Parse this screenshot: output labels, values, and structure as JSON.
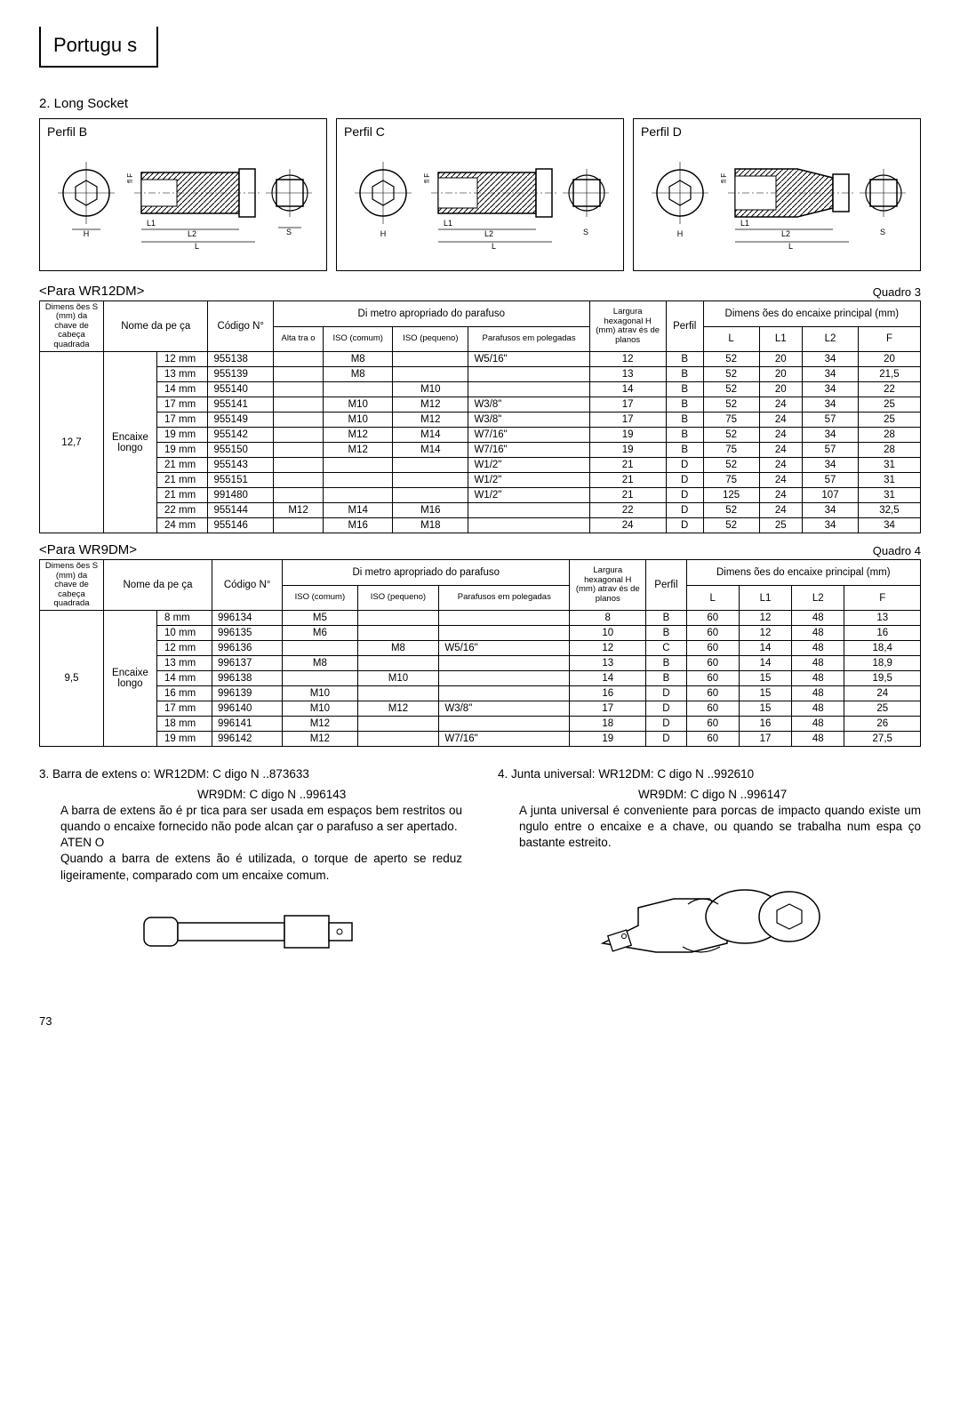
{
  "language_tab": "Portugu s",
  "section_2_title": "2.  Long Socket",
  "profiles": {
    "b": {
      "label": "Perfil  B"
    },
    "c": {
      "label": "Perfil  C"
    },
    "d": {
      "label": "Perfil  D"
    }
  },
  "diagram_labels": {
    "H": "H",
    "L1": "L1",
    "L2": "L2",
    "L": "L",
    "S": "S",
    "F": "F",
    "flange": "fl   "
  },
  "table3": {
    "caption": "<Para WR12DM>",
    "quadro": "Quadro 3",
    "head": {
      "dim_s": "Dimens ões S (mm) da chave de  cabeça quadrada",
      "nome": "Nome  da  pe ça",
      "codigo": "Código N°",
      "diametro_group": "Di  metro  apropriado  do  parafuso",
      "alta": "Alta tra  o",
      "iso_comum": "ISO (comum)",
      "iso_peq": "ISO (pequeno)",
      "par_pol": "Parafusos  em polegadas",
      "largura": "Largura hexagonal  H (mm)  atrav és de  planos",
      "perfil": "Perfil",
      "dim_encaixe_group": "Dimens ões  do  encaixe principal  (mm)",
      "L": "L",
      "L1": "L1",
      "L2": "L2",
      "F": "F"
    },
    "drive": "12,7",
    "nome_peca": "Encaixe longo",
    "rows": [
      {
        "size": "12  mm",
        "code": "955138",
        "alta": "",
        "iso_c": "M8",
        "iso_p": "",
        "pol": "W5/16\"",
        "hex": "12",
        "perfil": "B",
        "L": "52",
        "L1": "20",
        "L2": "34",
        "F": "20"
      },
      {
        "size": "13  mm",
        "code": "955139",
        "alta": "",
        "iso_c": "M8",
        "iso_p": "",
        "pol": "",
        "hex": "13",
        "perfil": "B",
        "L": "52",
        "L1": "20",
        "L2": "34",
        "F": "21,5"
      },
      {
        "size": "14  mm",
        "code": "955140",
        "alta": "",
        "iso_c": "",
        "iso_p": "M10",
        "pol": "",
        "hex": "14",
        "perfil": "B",
        "L": "52",
        "L1": "20",
        "L2": "34",
        "F": "22"
      },
      {
        "size": "17  mm",
        "code": "955141",
        "alta": "",
        "iso_c": "M10",
        "iso_p": "M12",
        "pol": "W3/8\"",
        "hex": "17",
        "perfil": "B",
        "L": "52",
        "L1": "24",
        "L2": "34",
        "F": "25"
      },
      {
        "size": "17  mm",
        "code": "955149",
        "alta": "",
        "iso_c": "M10",
        "iso_p": "M12",
        "pol": "W3/8\"",
        "hex": "17",
        "perfil": "B",
        "L": "75",
        "L1": "24",
        "L2": "57",
        "F": "25"
      },
      {
        "size": "19  mm",
        "code": "955142",
        "alta": "",
        "iso_c": "M12",
        "iso_p": "M14",
        "pol": "W7/16\"",
        "hex": "19",
        "perfil": "B",
        "L": "52",
        "L1": "24",
        "L2": "34",
        "F": "28"
      },
      {
        "size": "19  mm",
        "code": "955150",
        "alta": "",
        "iso_c": "M12",
        "iso_p": "M14",
        "pol": "W7/16\"",
        "hex": "19",
        "perfil": "B",
        "L": "75",
        "L1": "24",
        "L2": "57",
        "F": "28"
      },
      {
        "size": "21  mm",
        "code": "955143",
        "alta": "",
        "iso_c": "",
        "iso_p": "",
        "pol": "W1/2\"",
        "hex": "21",
        "perfil": "D",
        "L": "52",
        "L1": "24",
        "L2": "34",
        "F": "31"
      },
      {
        "size": "21  mm",
        "code": "955151",
        "alta": "",
        "iso_c": "",
        "iso_p": "",
        "pol": "W1/2\"",
        "hex": "21",
        "perfil": "D",
        "L": "75",
        "L1": "24",
        "L2": "57",
        "F": "31"
      },
      {
        "size": "21  mm",
        "code": "991480",
        "alta": "",
        "iso_c": "",
        "iso_p": "",
        "pol": "W1/2\"",
        "hex": "21",
        "perfil": "D",
        "L": "125",
        "L1": "24",
        "L2": "107",
        "F": "31"
      },
      {
        "size": "22  mm",
        "code": "955144",
        "alta": "M12",
        "iso_c": "M14",
        "iso_p": "M16",
        "pol": "",
        "hex": "22",
        "perfil": "D",
        "L": "52",
        "L1": "24",
        "L2": "34",
        "F": "32,5"
      },
      {
        "size": "24  mm",
        "code": "955146",
        "alta": "",
        "iso_c": "M16",
        "iso_p": "M18",
        "pol": "",
        "hex": "24",
        "perfil": "D",
        "L": "52",
        "L1": "25",
        "L2": "34",
        "F": "34"
      }
    ]
  },
  "table4": {
    "caption": "<Para WR9DM>",
    "quadro": "Quadro 4",
    "head": {
      "dim_s": "Dimens ões  S (mm)  da  chave de  cabeça quadrada",
      "nome": "Nome  da  pe ça",
      "codigo": "Código N°",
      "diametro_group": "Di  metro  apropriado  do  parafuso",
      "iso_comum": "ISO (comum)",
      "iso_peq": "ISO (pequeno)",
      "par_pol": "Parafusos  em polegadas",
      "largura": "Largura hexagonal  H (mm)  atrav és de  planos",
      "perfil": "Perfil",
      "dim_encaixe_group": "Dimens ões  do  encaixe principal  (mm)",
      "L": "L",
      "L1": "L1",
      "L2": "L2",
      "F": "F"
    },
    "drive": "9,5",
    "nome_peca": "Encaixe longo",
    "rows": [
      {
        "size": "8  mm",
        "code": "996134",
        "iso_c": "M5",
        "iso_p": "",
        "pol": "",
        "hex": "8",
        "perfil": "B",
        "L": "60",
        "L1": "12",
        "L2": "48",
        "F": "13"
      },
      {
        "size": "10  mm",
        "code": "996135",
        "iso_c": "M6",
        "iso_p": "",
        "pol": "",
        "hex": "10",
        "perfil": "B",
        "L": "60",
        "L1": "12",
        "L2": "48",
        "F": "16"
      },
      {
        "size": "12  mm",
        "code": "996136",
        "iso_c": "",
        "iso_p": "M8",
        "pol": "W5/16\"",
        "hex": "12",
        "perfil": "C",
        "L": "60",
        "L1": "14",
        "L2": "48",
        "F": "18,4"
      },
      {
        "size": "13  mm",
        "code": "996137",
        "iso_c": "M8",
        "iso_p": "",
        "pol": "",
        "hex": "13",
        "perfil": "B",
        "L": "60",
        "L1": "14",
        "L2": "48",
        "F": "18,9"
      },
      {
        "size": "14  mm",
        "code": "996138",
        "iso_c": "",
        "iso_p": "M10",
        "pol": "",
        "hex": "14",
        "perfil": "B",
        "L": "60",
        "L1": "15",
        "L2": "48",
        "F": "19,5"
      },
      {
        "size": "16  mm",
        "code": "996139",
        "iso_c": "M10",
        "iso_p": "",
        "pol": "",
        "hex": "16",
        "perfil": "D",
        "L": "60",
        "L1": "15",
        "L2": "48",
        "F": "24"
      },
      {
        "size": "17  mm",
        "code": "996140",
        "iso_c": "M10",
        "iso_p": "M12",
        "pol": "W3/8\"",
        "hex": "17",
        "perfil": "D",
        "L": "60",
        "L1": "15",
        "L2": "48",
        "F": "25"
      },
      {
        "size": "18  mm",
        "code": "996141",
        "iso_c": "M12",
        "iso_p": "",
        "pol": "",
        "hex": "18",
        "perfil": "D",
        "L": "60",
        "L1": "16",
        "L2": "48",
        "F": "26"
      },
      {
        "size": "19  mm",
        "code": "996142",
        "iso_c": "M12",
        "iso_p": "",
        "pol": "W7/16\"",
        "hex": "19",
        "perfil": "D",
        "L": "60",
        "L1": "17",
        "L2": "48",
        "F": "27,5"
      }
    ]
  },
  "section_3": {
    "title": "3.  Barra de extens   o: WR12DM: C   digo N  ..873633",
    "title2": "WR9DM:  C   digo N  ..996143",
    "body1": "A  barra  de  extens ão  é  pr   tica  para  ser  usada  em espaços bem restritos ou quando o encaixe fornecido não  pode  alcan çar  o  parafuso  a  ser  apertado.",
    "caution": "ATEN    O",
    "body2": "Quando  a  barra  de  extens ão  é  utilizada,  o  torque de  aperto  se  reduz  ligeiramente,  comparado  com um  encaixe  comum."
  },
  "section_4": {
    "title": "4.  Junta universal:  WR12DM:   C    digo N  ..992610",
    "title2": "WR9DM:    C    digo N  ..996147",
    "body": "A  junta  universal   é  conveniente  para  porcas  de impacto  quando  existe  um      ngulo  entre  o  encaixe e  a  chave,  ou  quando  se  trabalha  num  espa    ço bastante  estreito."
  },
  "page_number": "73",
  "colors": {
    "line": "#000000",
    "hatch": "#000000",
    "bg": "#ffffff"
  }
}
